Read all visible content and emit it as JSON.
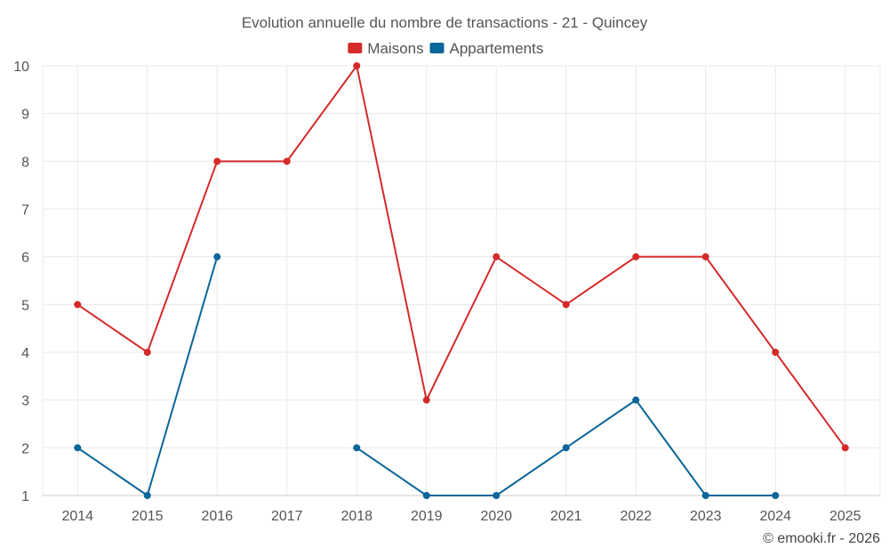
{
  "chart_data": {
    "type": "line",
    "title": "Evolution annuelle du nombre de transactions - 21 - Quincey",
    "categories": [
      "2014",
      "2015",
      "2016",
      "2017",
      "2018",
      "2019",
      "2020",
      "2021",
      "2022",
      "2023",
      "2024",
      "2025"
    ],
    "series": [
      {
        "name": "Maisons",
        "color": "#d42a2a",
        "values": [
          5,
          4,
          8,
          8,
          10,
          3,
          6,
          5,
          6,
          6,
          4,
          2
        ]
      },
      {
        "name": "Appartements",
        "color": "#0b6699",
        "values": [
          2,
          1,
          6,
          null,
          2,
          1,
          1,
          2,
          3,
          1,
          1,
          null
        ]
      }
    ],
    "ylim": [
      1,
      10
    ],
    "yticks": [
      1,
      2,
      3,
      4,
      5,
      6,
      7,
      8,
      9,
      10
    ],
    "xlabel": "",
    "ylabel": "",
    "grid": true,
    "legend_position": "top-center"
  },
  "credit": "© emooki.fr - 2026"
}
